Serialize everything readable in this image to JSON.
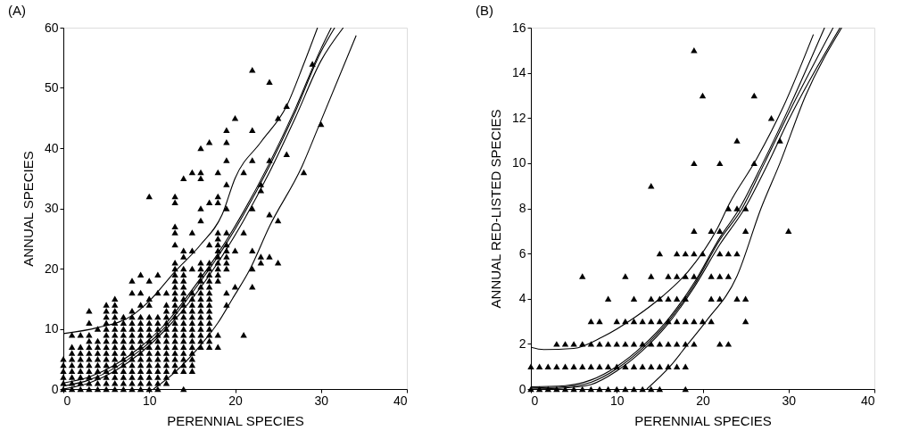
{
  "chart_data": [
    {
      "type": "scatter",
      "title": "(A)",
      "xlabel": "PERENNIAL SPECIES",
      "ylabel": "ANNUAL SPECIES",
      "xlim": [
        0,
        40
      ],
      "ylim": [
        0,
        60
      ],
      "xticks": [
        0,
        10,
        20,
        30,
        40
      ],
      "yticks": [
        0,
        10,
        20,
        30,
        40,
        50,
        60
      ],
      "marker": "triangle",
      "line_style": "solid",
      "series": [
        {
          "color": "#000000",
          "x": [
            0,
            0,
            0,
            0,
            0,
            0
          ],
          "values": [
            0,
            1,
            2,
            3,
            4,
            5
          ]
        },
        {
          "color": "#000000",
          "x": [
            1,
            1,
            1,
            1,
            1,
            1,
            1,
            1,
            1
          ],
          "values": [
            0,
            1,
            2,
            3,
            4,
            5,
            6,
            7,
            9
          ]
        },
        {
          "color": "#000000",
          "x": [
            2,
            2,
            2,
            2,
            2,
            2,
            2,
            2,
            2
          ],
          "values": [
            0,
            1,
            2,
            3,
            4,
            5,
            6,
            7,
            9
          ]
        },
        {
          "color": "#000000",
          "x": [
            3,
            3,
            3,
            3,
            3,
            3,
            3,
            3,
            3,
            3,
            3,
            3
          ],
          "values": [
            0,
            1,
            2,
            3,
            4,
            5,
            6,
            7,
            8,
            9,
            11,
            13
          ]
        },
        {
          "color": "#000000",
          "x": [
            4,
            4,
            4,
            4,
            4,
            4,
            4,
            4,
            4,
            4
          ],
          "values": [
            0,
            1,
            2,
            3,
            4,
            5,
            6,
            7,
            8,
            10
          ]
        },
        {
          "color": "#000000",
          "x": [
            5,
            5,
            5,
            5,
            5,
            5,
            5,
            5,
            5,
            5,
            5,
            5,
            5,
            5,
            5
          ],
          "values": [
            0,
            1,
            2,
            3,
            4,
            5,
            6,
            7,
            8,
            9,
            10,
            11,
            12,
            13,
            14
          ]
        },
        {
          "color": "#000000",
          "x": [
            6,
            6,
            6,
            6,
            6,
            6,
            6,
            6,
            6,
            6,
            6,
            6,
            6,
            6,
            6,
            6
          ],
          "values": [
            0,
            1,
            2,
            3,
            4,
            5,
            6,
            7,
            8,
            9,
            10,
            11,
            12,
            13,
            14,
            15
          ]
        },
        {
          "color": "#000000",
          "x": [
            7,
            7,
            7,
            7,
            7,
            7,
            7,
            7,
            7,
            7,
            7,
            7,
            7
          ],
          "values": [
            0,
            1,
            2,
            3,
            4,
            5,
            6,
            7,
            8,
            9,
            10,
            11,
            12
          ]
        },
        {
          "color": "#000000",
          "x": [
            8,
            8,
            8,
            8,
            8,
            8,
            8,
            8,
            8,
            8,
            8,
            8,
            8,
            8,
            8,
            8
          ],
          "values": [
            0,
            1,
            2,
            3,
            4,
            5,
            6,
            7,
            8,
            9,
            10,
            11,
            12,
            13,
            16,
            18
          ]
        },
        {
          "color": "#000000",
          "x": [
            9,
            9,
            9,
            9,
            9,
            9,
            9,
            9,
            9,
            9,
            9,
            9,
            9,
            9,
            9,
            9
          ],
          "values": [
            0,
            1,
            2,
            3,
            4,
            5,
            6,
            7,
            8,
            9,
            10,
            11,
            12,
            14,
            16,
            19
          ]
        },
        {
          "color": "#000000",
          "x": [
            10,
            10,
            10,
            10,
            10,
            10,
            10,
            10,
            10,
            10,
            10,
            10,
            10,
            10,
            10,
            10,
            10
          ],
          "values": [
            0,
            1,
            2,
            3,
            4,
            5,
            6,
            7,
            8,
            9,
            10,
            11,
            12,
            14,
            15,
            18,
            32
          ]
        },
        {
          "color": "#000000",
          "x": [
            11,
            11,
            11,
            11,
            11,
            11,
            11,
            11,
            11,
            11,
            11,
            11,
            11,
            11,
            11
          ],
          "values": [
            0,
            1,
            2,
            3,
            4,
            5,
            6,
            7,
            8,
            9,
            10,
            11,
            12,
            16,
            19
          ]
        },
        {
          "color": "#000000",
          "x": [
            12,
            12,
            12,
            12,
            12,
            12,
            12,
            12,
            12,
            12,
            12,
            12,
            12,
            12,
            12
          ],
          "values": [
            1,
            2,
            3,
            4,
            5,
            6,
            7,
            8,
            9,
            10,
            11,
            12,
            13,
            14,
            16
          ]
        },
        {
          "color": "#000000",
          "x": [
            13,
            13,
            13,
            13,
            13,
            13,
            13,
            13,
            13,
            13,
            13,
            13,
            13,
            13,
            13,
            13,
            13,
            13,
            13,
            13,
            13,
            13,
            13,
            13
          ],
          "values": [
            3,
            4,
            5,
            6,
            7,
            8,
            9,
            10,
            11,
            12,
            13,
            14,
            15,
            16,
            17,
            18,
            19,
            20,
            21,
            24,
            26,
            27,
            31,
            32
          ]
        },
        {
          "color": "#000000",
          "x": [
            14,
            14,
            14,
            14,
            14,
            14,
            14,
            14,
            14,
            14,
            14,
            14,
            14,
            14,
            14,
            14,
            14,
            14,
            14,
            14,
            14,
            14
          ],
          "values": [
            0,
            3,
            4,
            5,
            6,
            7,
            8,
            9,
            10,
            11,
            12,
            13,
            14,
            15,
            16,
            17,
            18,
            19,
            20,
            22,
            23,
            35
          ]
        },
        {
          "color": "#000000",
          "x": [
            15,
            15,
            15,
            15,
            15,
            15,
            15,
            15,
            15,
            15,
            15,
            15,
            15,
            15,
            15,
            15,
            15,
            15
          ],
          "values": [
            3,
            4,
            5,
            6,
            7,
            8,
            9,
            10,
            11,
            12,
            13,
            14,
            15,
            16,
            20,
            23,
            26,
            36
          ]
        },
        {
          "color": "#000000",
          "x": [
            16,
            16,
            16,
            16,
            16,
            16,
            16,
            16,
            16,
            16,
            16,
            16,
            16,
            16,
            16,
            16,
            16,
            16,
            16,
            16
          ],
          "values": [
            7,
            8,
            9,
            10,
            11,
            12,
            13,
            14,
            15,
            16,
            17,
            18,
            19,
            20,
            21,
            28,
            30,
            35,
            36,
            40
          ]
        },
        {
          "color": "#000000",
          "x": [
            17,
            17,
            17,
            17,
            17,
            17,
            17,
            17,
            17,
            17,
            17,
            17,
            17,
            17,
            17,
            17,
            17,
            17
          ],
          "values": [
            7,
            8,
            9,
            10,
            11,
            12,
            13,
            14,
            15,
            16,
            17,
            18,
            19,
            20,
            21,
            24,
            31,
            41
          ]
        },
        {
          "color": "#000000",
          "x": [
            18,
            18,
            18,
            18,
            18,
            18,
            18,
            18,
            18,
            18,
            18,
            18,
            18,
            18
          ],
          "values": [
            7,
            9,
            18,
            19,
            20,
            21,
            22,
            23,
            24,
            25,
            26,
            31,
            32,
            36
          ]
        },
        {
          "color": "#000000",
          "x": [
            19,
            19,
            19,
            19,
            19,
            19,
            19,
            19,
            19,
            19,
            19,
            19,
            19
          ],
          "values": [
            14,
            16,
            20,
            21,
            22,
            23,
            24,
            26,
            30,
            34,
            38,
            41,
            43
          ]
        },
        {
          "color": "#000000",
          "x": [
            20,
            20,
            20,
            21,
            21,
            21
          ],
          "values": [
            17,
            23,
            45,
            9,
            26,
            36
          ]
        },
        {
          "color": "#000000",
          "x": [
            22,
            22,
            22,
            22,
            22,
            22,
            22
          ],
          "values": [
            17,
            20,
            23,
            30,
            38,
            43,
            53
          ]
        },
        {
          "color": "#000000",
          "x": [
            23,
            23,
            23,
            23,
            24,
            24,
            24,
            24
          ],
          "values": [
            21,
            22,
            33,
            34,
            22,
            29,
            38,
            51
          ]
        },
        {
          "color": "#000000",
          "x": [
            25,
            25,
            25,
            26,
            26,
            28,
            29,
            30
          ],
          "values": [
            21,
            28,
            45,
            39,
            47,
            36,
            54,
            44
          ]
        },
        {
          "type": "line",
          "marker": "none",
          "color": "#000000",
          "x": [
            0,
            4,
            8,
            10,
            13,
            16,
            18.5,
            20,
            23,
            26,
            28,
            29.6
          ],
          "values": [
            9.2,
            10.2,
            12.2,
            14.6,
            19.5,
            24,
            29,
            35,
            41,
            47,
            54,
            60
          ]
        },
        {
          "type": "line",
          "marker": "none",
          "color": "#000000",
          "x": [
            0,
            3,
            6,
            9,
            12,
            15,
            18,
            21,
            24,
            27,
            30,
            31.2
          ],
          "values": [
            1,
            2,
            4,
            7,
            11,
            16.5,
            22.5,
            29.5,
            37.5,
            46.5,
            56.5,
            60
          ]
        },
        {
          "type": "line",
          "marker": "none",
          "color": "#000000",
          "x": [
            0,
            3,
            6,
            9,
            12,
            15,
            18,
            21,
            24,
            27,
            30,
            31.6
          ],
          "values": [
            0.5,
            1.5,
            3.5,
            6.5,
            10.5,
            16,
            22,
            29,
            37,
            46,
            56,
            60
          ]
        },
        {
          "type": "line",
          "marker": "none",
          "color": "#000000",
          "x": [
            0,
            3,
            6,
            9,
            12,
            15,
            18,
            21,
            24,
            27,
            30,
            32.6
          ],
          "values": [
            0,
            1,
            3,
            6,
            10,
            15,
            21,
            28,
            36,
            45,
            54.5,
            60
          ]
        },
        {
          "type": "line",
          "marker": "none",
          "color": "#000000",
          "x": [
            10.5,
            13,
            16,
            18,
            19.7,
            21.7,
            24,
            27.8,
            29.7,
            34.1
          ],
          "values": [
            0,
            2.8,
            7.3,
            11,
            15,
            19.8,
            27,
            37,
            43.5,
            58.7
          ]
        }
      ]
    },
    {
      "type": "scatter",
      "title": "(B)",
      "xlabel": "PERENNIAL SPECIES",
      "ylabel": "ANNUAL RED-LISTED SPECIES",
      "xlim": [
        0,
        40
      ],
      "ylim": [
        0,
        16
      ],
      "xticks": [
        0,
        10,
        20,
        30,
        40
      ],
      "yticks": [
        0,
        2,
        4,
        6,
        8,
        10,
        12,
        14,
        16
      ],
      "marker": "triangle",
      "line_style": "solid",
      "series": [
        {
          "color": "#000000",
          "x": [
            0,
            1,
            2,
            3,
            4,
            5,
            6,
            7,
            8,
            9,
            10,
            11,
            12,
            13,
            14,
            15,
            18
          ],
          "values": [
            0,
            0,
            0,
            0,
            0,
            0,
            0,
            0,
            0,
            0,
            0,
            0,
            0,
            0,
            0,
            0,
            0
          ]
        },
        {
          "color": "#000000",
          "x": [
            0,
            1,
            2,
            3,
            4,
            5,
            6,
            7,
            8,
            9,
            10,
            11,
            12,
            13,
            14,
            15,
            16,
            17,
            18
          ],
          "values": [
            1,
            1,
            1,
            1,
            1,
            1,
            1,
            1,
            1,
            1,
            1,
            1,
            1,
            1,
            1,
            1,
            1,
            1,
            1
          ]
        },
        {
          "color": "#000000",
          "x": [
            3,
            4,
            5,
            6,
            7,
            8,
            9,
            10,
            11,
            12,
            13,
            14,
            15,
            16,
            17,
            18,
            19,
            22,
            23
          ],
          "values": [
            2,
            2,
            2,
            2,
            2,
            2,
            2,
            2,
            2,
            2,
            2,
            2,
            2,
            2,
            2,
            2,
            2,
            2,
            2
          ]
        },
        {
          "color": "#000000",
          "x": [
            7,
            8,
            10,
            11,
            12,
            13,
            14,
            15,
            16,
            17,
            18,
            19,
            20,
            21,
            25
          ],
          "values": [
            3,
            3,
            3,
            3,
            3,
            3,
            3,
            3,
            3,
            3,
            3,
            3,
            3,
            3,
            3
          ]
        },
        {
          "color": "#000000",
          "x": [
            9,
            12,
            14,
            15,
            16,
            17,
            18,
            21,
            22,
            24,
            25
          ],
          "values": [
            4,
            4,
            4,
            4,
            4,
            4,
            4,
            4,
            4,
            4,
            4
          ]
        },
        {
          "color": "#000000",
          "x": [
            6,
            11,
            14,
            16,
            17,
            18,
            19,
            21,
            22,
            23
          ],
          "values": [
            5,
            5,
            5,
            5,
            5,
            5,
            5,
            5,
            5,
            5
          ]
        },
        {
          "color": "#000000",
          "x": [
            15,
            17,
            18,
            19,
            20,
            22,
            23,
            24
          ],
          "values": [
            6,
            6,
            6,
            6,
            6,
            6,
            6,
            6
          ]
        },
        {
          "color": "#000000",
          "x": [
            19,
            21,
            22,
            25,
            30
          ],
          "values": [
            7,
            7,
            7,
            7,
            7
          ]
        },
        {
          "color": "#000000",
          "x": [
            23,
            24,
            25,
            14,
            19,
            22,
            26,
            24,
            29,
            28,
            20,
            26,
            19
          ],
          "values": [
            8,
            8,
            8,
            9,
            10,
            10,
            10,
            11,
            11,
            12,
            13,
            13,
            15
          ]
        },
        {
          "type": "line",
          "marker": "none",
          "color": "#000000",
          "x": [
            0,
            1.5,
            5,
            8.3,
            12.2,
            15.3,
            18.3,
            21.7,
            23.1,
            26.3,
            29.4,
            32.9
          ],
          "values": [
            1.85,
            1.75,
            1.8,
            2.3,
            3.2,
            4.1,
            5.2,
            7.1,
            8.2,
            10.2,
            12.5,
            15.7
          ]
        },
        {
          "type": "line",
          "marker": "none",
          "color": "#000000",
          "x": [
            0,
            4,
            7,
            10,
            13,
            16,
            19,
            22,
            24.3,
            27,
            30,
            34.2
          ],
          "values": [
            0.1,
            0.15,
            0.4,
            1,
            1.9,
            3.1,
            4.7,
            6.7,
            8,
            10,
            12.4,
            16
          ]
        },
        {
          "type": "line",
          "marker": "none",
          "color": "#000000",
          "x": [
            0,
            4,
            7,
            10,
            13,
            16,
            19,
            22,
            24.6,
            27.2,
            30,
            35.2
          ],
          "values": [
            0.05,
            0.1,
            0.3,
            0.9,
            1.8,
            3,
            4.6,
            6.6,
            8,
            10,
            12.2,
            16
          ]
        },
        {
          "type": "line",
          "marker": "none",
          "color": "#000000",
          "x": [
            0,
            4,
            7,
            10,
            13,
            16,
            19,
            22,
            24.9,
            27.5,
            30,
            36
          ],
          "values": [
            0,
            0.05,
            0.2,
            0.8,
            1.7,
            2.9,
            4.5,
            6.4,
            8,
            9.9,
            11.9,
            16
          ]
        },
        {
          "type": "line",
          "marker": "none",
          "color": "#000000",
          "x": [
            13.5,
            16.2,
            18.3,
            20.4,
            24,
            26.8,
            29,
            32,
            36.2
          ],
          "values": [
            0,
            1,
            2,
            3,
            5,
            8,
            10,
            13,
            16
          ]
        }
      ]
    }
  ]
}
